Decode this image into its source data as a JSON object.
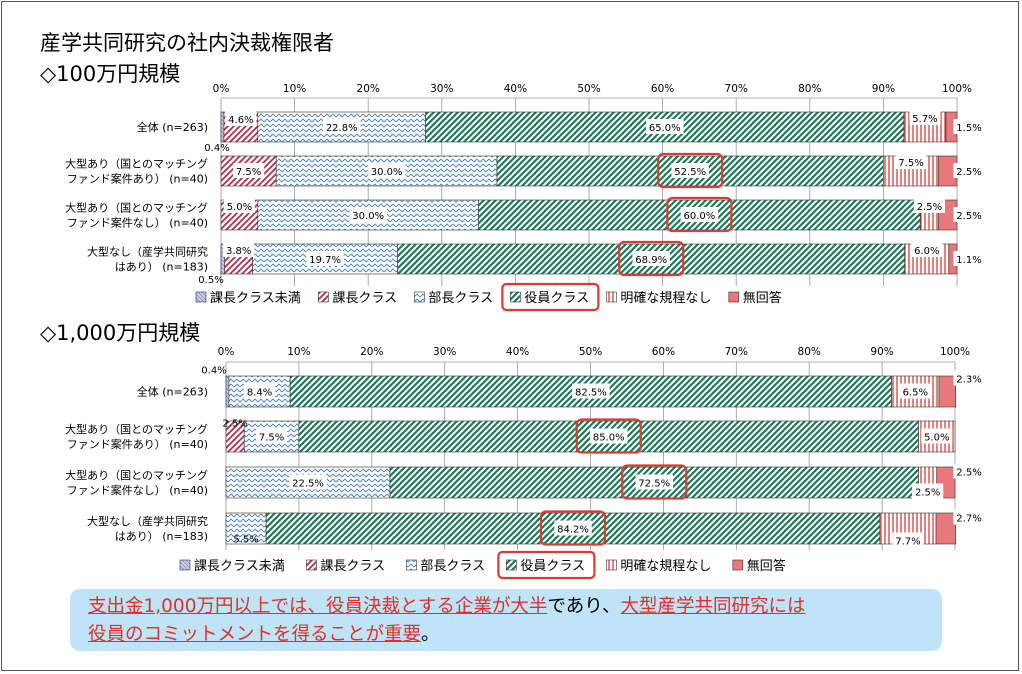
{
  "title": "産学共同研究の社内決裁権限者",
  "note": {
    "line1": [
      {
        "text": "支出金1,000万円以上では、役員決裁とする企業が大半",
        "red": true
      },
      {
        "text": "であり、",
        "red": false
      },
      {
        "text": "大型産学共同研究には",
        "red": true
      }
    ],
    "line2": [
      {
        "text": "役員のコミットメントを得ることが重要",
        "red": true
      },
      {
        "text": "。",
        "red": false
      }
    ]
  },
  "chart_data": [
    {
      "type": "bar",
      "stacked": true,
      "orientation": "horizontal",
      "subtitle": "◇100万円規模",
      "xlim": [
        0,
        100
      ],
      "xticks": [
        "0%",
        "10%",
        "20%",
        "30%",
        "40%",
        "50%",
        "60%",
        "70%",
        "80%",
        "90%",
        "100%"
      ],
      "categories": [
        [
          "全体 (n=263)"
        ],
        [
          "大型あり（国とのマッチング",
          "ファンド案件あり） (n=40)"
        ],
        [
          "大型あり（国とのマッチング",
          "ファンド案件なし） (n=40)"
        ],
        [
          "大型なし（産学共同研究",
          "はあり） (n=183)"
        ]
      ],
      "series": [
        {
          "name": "課長クラス未満",
          "values": [
            0.4,
            0,
            0,
            0.5
          ],
          "labels": [
            "0.4%",
            "",
            "",
            "0.5%"
          ]
        },
        {
          "name": "課長クラス",
          "values": [
            4.6,
            7.5,
            5.0,
            3.8
          ],
          "labels": [
            "4.6%",
            "7.5%",
            "5.0%",
            "3.8%"
          ]
        },
        {
          "name": "部長クラス",
          "values": [
            22.8,
            30.0,
            30.0,
            19.7
          ],
          "labels": [
            "22.8%",
            "30.0%",
            "30.0%",
            "19.7%"
          ]
        },
        {
          "name": "役員クラス",
          "values": [
            65.0,
            52.5,
            60.0,
            68.9
          ],
          "labels": [
            "65.0%",
            "52.5%",
            "60.0%",
            "68.9%"
          ]
        },
        {
          "name": "明確な規程なし",
          "values": [
            5.7,
            7.5,
            2.5,
            6.0
          ],
          "labels": [
            "5.7%",
            "7.5%",
            "2.5%",
            "6.0%"
          ]
        },
        {
          "name": "無回答",
          "values": [
            1.5,
            2.5,
            2.5,
            1.1
          ],
          "labels": [
            "1.5%",
            "2.5%",
            "2.5%",
            "1.1%"
          ]
        }
      ],
      "highlight": {
        "series": "役員クラス",
        "rows": [
          1,
          2,
          3
        ]
      },
      "legend": "bottom"
    },
    {
      "type": "bar",
      "stacked": true,
      "orientation": "horizontal",
      "subtitle": "◇1,000万円規模",
      "xlim": [
        0,
        100
      ],
      "xticks": [
        "0%",
        "10%",
        "20%",
        "30%",
        "40%",
        "50%",
        "60%",
        "70%",
        "80%",
        "90%",
        "100%"
      ],
      "categories": [
        [
          "全体 (n=263)"
        ],
        [
          "大型あり（国とのマッチング",
          "ファンド案件あり） (n=40)"
        ],
        [
          "大型あり（国とのマッチング",
          "ファンド案件なし） (n=40)"
        ],
        [
          "大型なし（産学共同研究",
          "はあり） (n=183)"
        ]
      ],
      "series": [
        {
          "name": "課長クラス未満",
          "values": [
            0.4,
            0,
            0,
            0
          ],
          "labels": [
            "0.4%",
            "",
            "",
            ""
          ]
        },
        {
          "name": "課長クラス",
          "values": [
            0,
            2.5,
            0,
            0
          ],
          "labels": [
            "",
            "2.5%",
            "",
            ""
          ]
        },
        {
          "name": "部長クラス",
          "values": [
            8.4,
            7.5,
            22.5,
            5.5
          ],
          "labels": [
            "8.4%",
            "7.5%",
            "22.5%",
            "5.5%"
          ]
        },
        {
          "name": "役員クラス",
          "values": [
            82.5,
            85.0,
            72.5,
            84.2
          ],
          "labels": [
            "82.5%",
            "85.0%",
            "72.5%",
            "84.2%"
          ]
        },
        {
          "name": "明確な規程なし",
          "values": [
            6.5,
            5.0,
            2.5,
            7.7
          ],
          "labels": [
            "6.5%",
            "5.0%",
            "2.5%",
            "7.7%"
          ]
        },
        {
          "name": "無回答",
          "values": [
            2.3,
            0,
            2.5,
            2.7
          ],
          "labels": [
            "2.3%",
            "",
            "2.5%",
            "2.7%"
          ]
        }
      ],
      "highlight": {
        "series": "役員クラス",
        "rows": [
          1,
          2,
          3
        ]
      },
      "legend": "bottom"
    }
  ]
}
